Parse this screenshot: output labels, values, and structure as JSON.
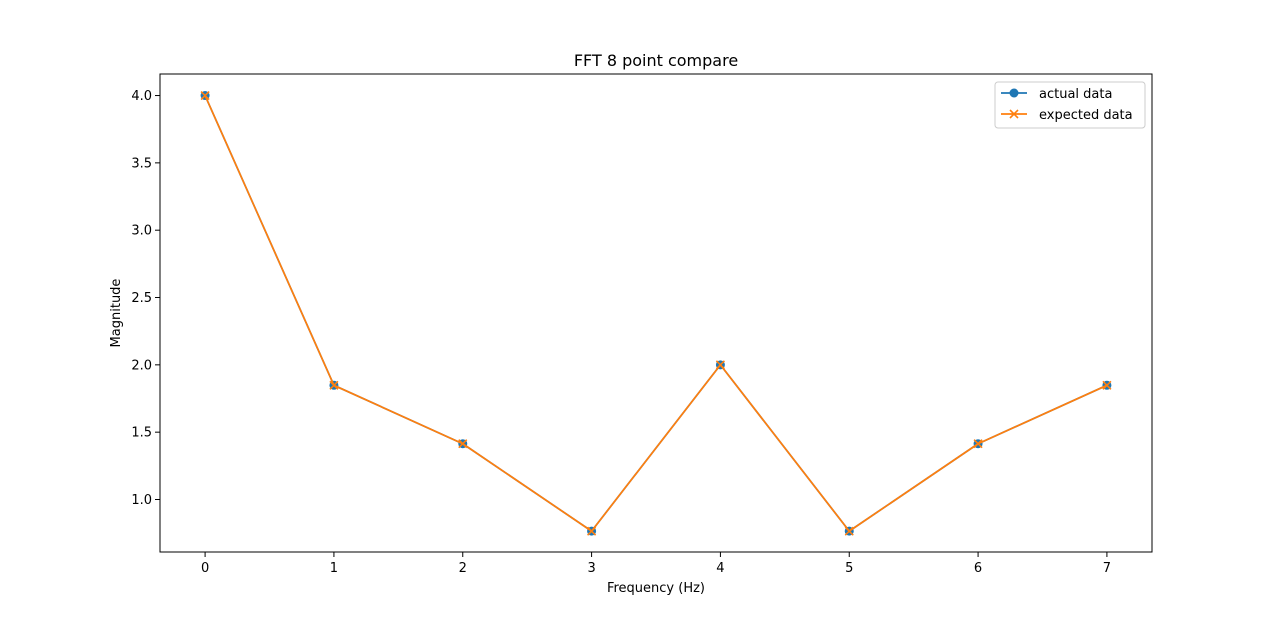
{
  "chart_data": {
    "type": "line",
    "title": "FFT 8 point compare",
    "xlabel": "Frequency (Hz)",
    "ylabel": "Magnitude",
    "x": [
      0,
      1,
      2,
      3,
      4,
      5,
      6,
      7
    ],
    "xticks": [
      0,
      1,
      2,
      3,
      4,
      5,
      6,
      7
    ],
    "yticks": [
      1.0,
      1.5,
      2.0,
      2.5,
      3.0,
      3.5,
      4.0
    ],
    "xlim": [
      -0.35,
      7.35
    ],
    "ylim": [
      0.61,
      4.16
    ],
    "grid": false,
    "legend_position": "top-right",
    "series": [
      {
        "name": "actual data",
        "marker": "circle",
        "color": "#1f77b4",
        "values": [
          4.0,
          1.848,
          1.414,
          0.765,
          2.0,
          0.765,
          1.414,
          1.848
        ]
      },
      {
        "name": "expected data",
        "marker": "x",
        "color": "#ff7f0e",
        "values": [
          4.0,
          1.848,
          1.414,
          0.765,
          2.0,
          0.765,
          1.414,
          1.848
        ]
      }
    ]
  }
}
